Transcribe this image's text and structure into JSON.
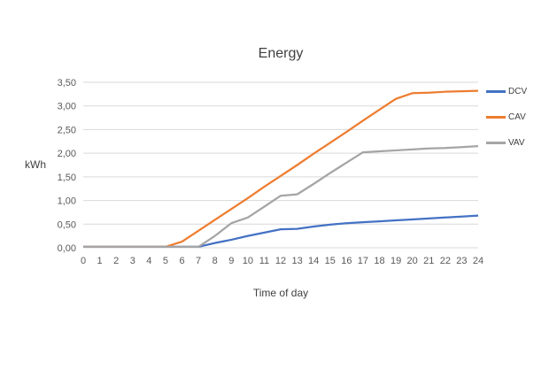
{
  "chart_data": {
    "type": "line",
    "title": "Energy",
    "xlabel": "Time of day",
    "ylabel": "kWh",
    "grid": true,
    "legend_position": "right",
    "xlim": [
      0,
      24
    ],
    "ylim": [
      0,
      3.5
    ],
    "ytick_step": 0.5,
    "ytick_labels": [
      "0,00",
      "0,50",
      "1,00",
      "1,50",
      "2,00",
      "2,50",
      "3,00",
      "3,50"
    ],
    "xtick_labels": [
      "0",
      "1",
      "2",
      "3",
      "4",
      "5",
      "6",
      "7",
      "8",
      "9",
      "10",
      "11",
      "12",
      "13",
      "14",
      "15",
      "16",
      "17",
      "18",
      "19",
      "20",
      "21",
      "22",
      "23",
      "24"
    ],
    "x": [
      0,
      1,
      2,
      3,
      4,
      5,
      6,
      7,
      8,
      9,
      10,
      11,
      12,
      13,
      14,
      15,
      16,
      17,
      18,
      19,
      20,
      21,
      22,
      23,
      24
    ],
    "series": [
      {
        "name": "DCV",
        "color": "#4472C4",
        "values": [
          0.02,
          0.02,
          0.02,
          0.02,
          0.02,
          0.02,
          0.02,
          0.02,
          0.1,
          0.17,
          0.25,
          0.32,
          0.39,
          0.4,
          0.45,
          0.49,
          0.52,
          0.54,
          0.56,
          0.58,
          0.6,
          0.62,
          0.64,
          0.66,
          0.68
        ]
      },
      {
        "name": "CAV",
        "color": "#ED7D31",
        "values": [
          0.02,
          0.02,
          0.02,
          0.02,
          0.02,
          0.02,
          0.13,
          0.36,
          0.59,
          0.82,
          1.05,
          1.29,
          1.52,
          1.75,
          1.99,
          2.22,
          2.45,
          2.69,
          2.92,
          3.15,
          3.27,
          3.28,
          3.3,
          3.31,
          3.32
        ]
      },
      {
        "name": "VAV",
        "color": "#A5A5A5",
        "values": [
          0.02,
          0.02,
          0.02,
          0.02,
          0.02,
          0.02,
          0.02,
          0.02,
          0.25,
          0.52,
          0.64,
          0.87,
          1.1,
          1.13,
          1.35,
          1.58,
          1.8,
          2.02,
          2.04,
          2.06,
          2.08,
          2.1,
          2.11,
          2.13,
          2.15
        ]
      }
    ],
    "colors": {
      "grid": "#D9D9D9",
      "tick_text": "#595959",
      "title_text": "#404040"
    }
  }
}
